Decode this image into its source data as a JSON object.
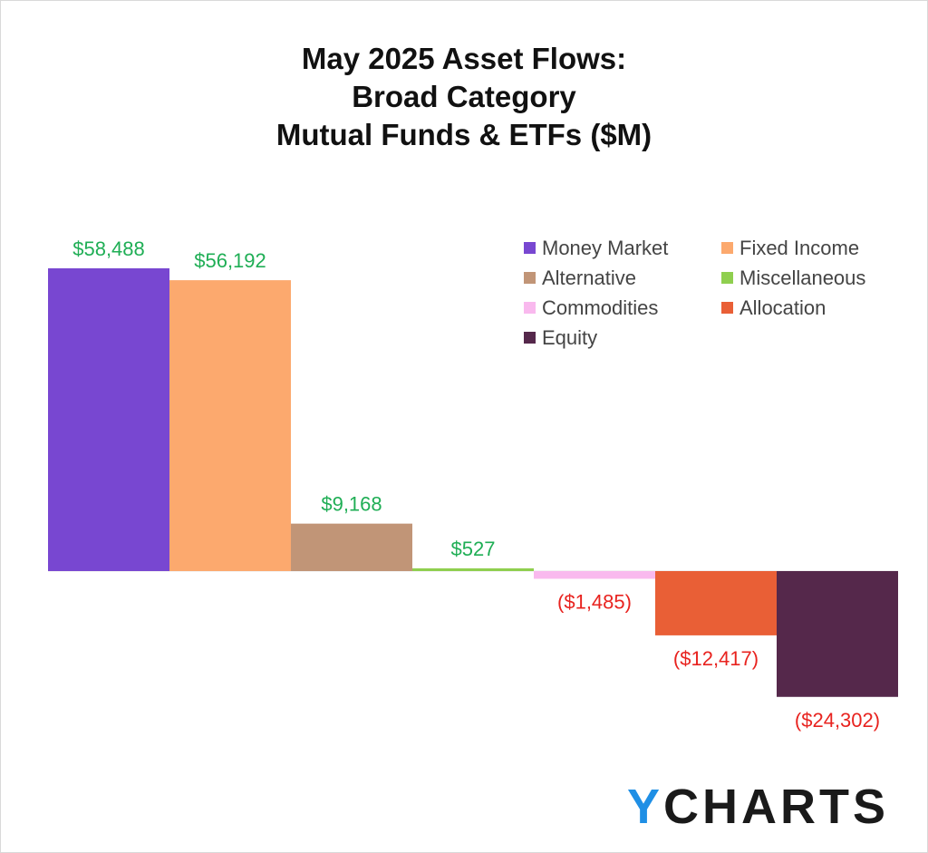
{
  "chart_data": {
    "type": "bar",
    "title_lines": [
      "May 2025 Asset Flows:",
      "Broad Category",
      "Mutual Funds & ETFs ($M)"
    ],
    "categories": [
      "Money Market",
      "Fixed Income",
      "Alternative",
      "Miscellaneous",
      "Commodities",
      "Allocation",
      "Equity"
    ],
    "values": [
      58488,
      56192,
      9168,
      527,
      -1485,
      -12417,
      -24302
    ],
    "data_labels": [
      "$58,488",
      "$56,192",
      "$9,168",
      "$527",
      "($1,485)",
      "($12,417)",
      "($24,302)"
    ],
    "colors": [
      "#7847d1",
      "#fca96e",
      "#c19577",
      "#8fcf4f",
      "#f9b9ee",
      "#e95f36",
      "#55284b"
    ],
    "positive_label_color": "#1fae55",
    "negative_label_color": "#e8231f",
    "xlabel": "",
    "ylabel": "",
    "ylim": [
      -24302,
      58488
    ],
    "grid": false,
    "legend_position": "top-right"
  },
  "branding": {
    "logo_prefix": "Y",
    "logo_rest": "CHARTS",
    "logo_accent_color": "#1f8fe5"
  }
}
